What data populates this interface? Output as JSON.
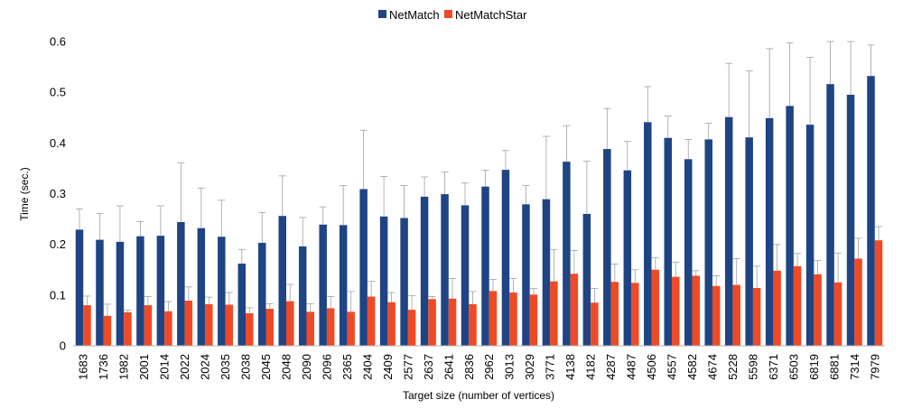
{
  "chart_data": {
    "type": "bar",
    "title": "",
    "xlabel": "Target size (number of vertices)",
    "ylabel": "Time (sec.)",
    "ylim": [
      0,
      0.6
    ],
    "yticks": [
      "0",
      "0.1",
      "0.2",
      "0.3",
      "0.4",
      "0.5",
      "0.6"
    ],
    "grid": false,
    "legend_position": "top-center",
    "categories": [
      "1683",
      "1736",
      "1982",
      "2001",
      "2014",
      "2022",
      "2024",
      "2035",
      "2038",
      "2045",
      "2048",
      "2090",
      "2096",
      "2365",
      "2404",
      "2409",
      "2577",
      "2637",
      "2641",
      "2836",
      "2962",
      "3013",
      "3029",
      "3771",
      "4138",
      "4182",
      "4287",
      "4487",
      "4506",
      "4557",
      "4582",
      "4674",
      "5228",
      "5598",
      "6371",
      "6503",
      "6819",
      "6881",
      "7314",
      "7979"
    ],
    "series": [
      {
        "name": "NetMatch",
        "color": "#1f4484",
        "values": [
          0.229,
          0.209,
          0.205,
          0.216,
          0.217,
          0.244,
          0.232,
          0.215,
          0.162,
          0.203,
          0.256,
          0.196,
          0.239,
          0.238,
          0.309,
          0.255,
          0.252,
          0.294,
          0.299,
          0.277,
          0.314,
          0.347,
          0.279,
          0.289,
          0.363,
          0.26,
          0.388,
          0.346,
          0.441,
          0.41,
          0.368,
          0.407,
          0.451,
          0.411,
          0.449,
          0.473,
          0.436,
          0.516,
          0.495,
          0.532
        ],
        "error_upper": [
          0.27,
          0.261,
          0.276,
          0.245,
          0.276,
          0.361,
          0.311,
          0.287,
          0.19,
          0.263,
          0.335,
          0.253,
          0.274,
          0.316,
          0.425,
          0.334,
          0.316,
          0.333,
          0.343,
          0.321,
          0.346,
          0.385,
          0.316,
          0.413,
          0.434,
          0.364,
          0.468,
          0.403,
          0.511,
          0.453,
          0.407,
          0.439,
          0.557,
          0.542,
          0.586,
          0.597,
          0.569,
          0.6,
          0.6,
          0.593
        ]
      },
      {
        "name": "NetMatchStar",
        "color": "#ee4a26",
        "values": [
          0.08,
          0.059,
          0.066,
          0.08,
          0.068,
          0.089,
          0.082,
          0.081,
          0.064,
          0.073,
          0.088,
          0.067,
          0.074,
          0.067,
          0.097,
          0.086,
          0.071,
          0.092,
          0.093,
          0.082,
          0.108,
          0.105,
          0.101,
          0.127,
          0.142,
          0.085,
          0.126,
          0.124,
          0.15,
          0.136,
          0.138,
          0.118,
          0.12,
          0.114,
          0.148,
          0.157,
          0.141,
          0.125,
          0.172,
          0.208
        ],
        "error_upper": [
          0.098,
          0.082,
          0.07,
          0.097,
          0.087,
          0.116,
          0.096,
          0.105,
          0.075,
          0.083,
          0.121,
          0.083,
          0.097,
          0.107,
          0.127,
          0.105,
          0.099,
          0.097,
          0.133,
          0.107,
          0.131,
          0.133,
          0.113,
          0.19,
          0.188,
          0.113,
          0.161,
          0.15,
          0.174,
          0.165,
          0.148,
          0.138,
          0.172,
          0.157,
          0.2,
          0.182,
          0.168,
          0.183,
          0.212,
          0.235
        ]
      }
    ]
  }
}
